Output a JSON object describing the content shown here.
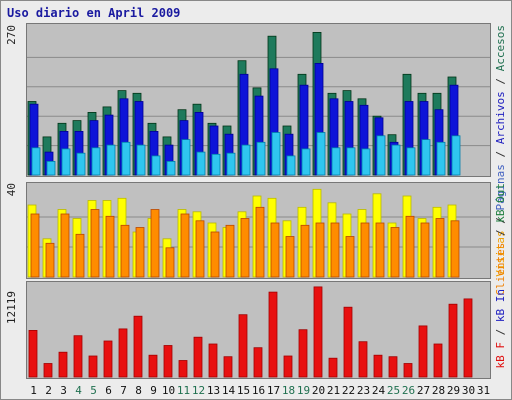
{
  "title": "Uso diario en April 2009",
  "right_labels": {
    "top": [
      {
        "text": "Visitas",
        "color": "#f0a000"
      },
      {
        "text": " / ",
        "color": "#333333"
      },
      {
        "text": "Páginas",
        "color": "#4060c0"
      },
      {
        "text": " / ",
        "color": "#333333"
      },
      {
        "text": "Archivos",
        "color": "#2020c0"
      },
      {
        "text": " / ",
        "color": "#333333"
      },
      {
        "text": "Accesos",
        "color": "#207050"
      }
    ],
    "mid": [
      {
        "text": "Clientes",
        "color": "#f08000"
      },
      {
        "text": " / ",
        "color": "#333333"
      },
      {
        "text": "kB Out",
        "color": "#208040"
      }
    ],
    "bot": [
      {
        "text": "kB F",
        "color": "#e01010"
      },
      {
        "text": " / ",
        "color": "#333333"
      },
      {
        "text": "kB In",
        "color": "#2020c0"
      }
    ]
  },
  "chart_data": [
    {
      "type": "bar",
      "panel": "top",
      "ymax_label": "270",
      "ylim": [
        0,
        270
      ],
      "grid": true,
      "categories": [
        "1",
        "2",
        "3",
        "4",
        "5",
        "6",
        "7",
        "8",
        "9",
        "10",
        "11",
        "12",
        "13",
        "14",
        "15",
        "16",
        "17",
        "18",
        "19",
        "20",
        "21",
        "22",
        "23",
        "24",
        "25",
        "26",
        "27",
        "28",
        "29",
        "30",
        "31"
      ],
      "series": [
        {
          "name": "Accesos",
          "color": "#1e7a5c",
          "values": [
            135,
            70,
            95,
            100,
            115,
            125,
            155,
            150,
            95,
            70,
            120,
            130,
            95,
            90,
            210,
            160,
            255,
            90,
            185,
            262,
            150,
            155,
            140,
            108,
            74,
            185,
            150,
            150,
            180,
            0,
            0
          ]
        },
        {
          "name": "Archivos",
          "color": "#0d14d8",
          "values": [
            130,
            42,
            80,
            80,
            100,
            110,
            140,
            135,
            80,
            55,
            100,
            115,
            90,
            75,
            185,
            145,
            195,
            75,
            165,
            205,
            140,
            135,
            128,
            105,
            60,
            135,
            135,
            120,
            165,
            0,
            0
          ]
        },
        {
          "name": "Visitas",
          "color": "#2fc6f0",
          "values": [
            50,
            25,
            48,
            40,
            50,
            55,
            60,
            55,
            35,
            25,
            65,
            42,
            38,
            40,
            55,
            60,
            78,
            35,
            48,
            78,
            50,
            50,
            48,
            72,
            55,
            50,
            65,
            60,
            72,
            0,
            0
          ]
        }
      ]
    },
    {
      "type": "bar",
      "panel": "mid",
      "ymax_label": "40",
      "ylim": [
        0,
        40
      ],
      "grid": true,
      "categories": [
        "1",
        "2",
        "3",
        "4",
        "5",
        "6",
        "7",
        "8",
        "9",
        "10",
        "11",
        "12",
        "13",
        "14",
        "15",
        "16",
        "17",
        "18",
        "19",
        "20",
        "21",
        "22",
        "23",
        "24",
        "25",
        "26",
        "27",
        "28",
        "29",
        "30",
        "31"
      ],
      "series": [
        {
          "name": "kB Out",
          "color": "#ffff00",
          "values": [
            32,
            17,
            30,
            26,
            34,
            34,
            35,
            20,
            26,
            17,
            30,
            29,
            24,
            22,
            29,
            36,
            35,
            25,
            31,
            39,
            33,
            28,
            30,
            37,
            24,
            36,
            26,
            31,
            32,
            0,
            0
          ]
        },
        {
          "name": "Clientes",
          "color": "#ff8c00",
          "values": [
            28,
            15,
            28,
            19,
            30,
            27,
            23,
            22,
            30,
            13,
            28,
            25,
            20,
            23,
            26,
            31,
            24,
            18,
            23,
            24,
            24,
            18,
            24,
            24,
            22,
            27,
            24,
            26,
            25,
            0,
            0
          ]
        }
      ]
    },
    {
      "type": "bar",
      "panel": "bot",
      "ymax_label": "12119",
      "ylim": [
        0,
        12119
      ],
      "grid": false,
      "categories": [
        "1",
        "2",
        "3",
        "4",
        "5",
        "6",
        "7",
        "8",
        "9",
        "10",
        "11",
        "12",
        "13",
        "14",
        "15",
        "16",
        "17",
        "18",
        "19",
        "20",
        "21",
        "22",
        "23",
        "24",
        "25",
        "26",
        "27",
        "28",
        "29",
        "30",
        "31"
      ],
      "series": [
        {
          "name": "kB F",
          "color": "#e81010",
          "values": [
            6200,
            1800,
            3300,
            5500,
            2800,
            4800,
            6400,
            8100,
            2900,
            4200,
            2200,
            5300,
            4400,
            2700,
            8300,
            3900,
            11300,
            2800,
            6300,
            12000,
            2500,
            9300,
            4700,
            2900,
            2700,
            1800,
            6800,
            4400,
            9700,
            10400,
            0
          ]
        }
      ]
    }
  ],
  "x_axis": {
    "labels": [
      "1",
      "2",
      "3",
      "4",
      "5",
      "6",
      "7",
      "8",
      "9",
      "10",
      "11",
      "12",
      "13",
      "14",
      "15",
      "16",
      "17",
      "18",
      "19",
      "20",
      "21",
      "22",
      "23",
      "24",
      "25",
      "26",
      "27",
      "28",
      "29",
      "30",
      "31"
    ],
    "weekend_days": [
      "4",
      "5",
      "11",
      "12",
      "18",
      "19",
      "25",
      "26"
    ],
    "weekday_color": "#111111",
    "weekend_color": "#207050"
  }
}
